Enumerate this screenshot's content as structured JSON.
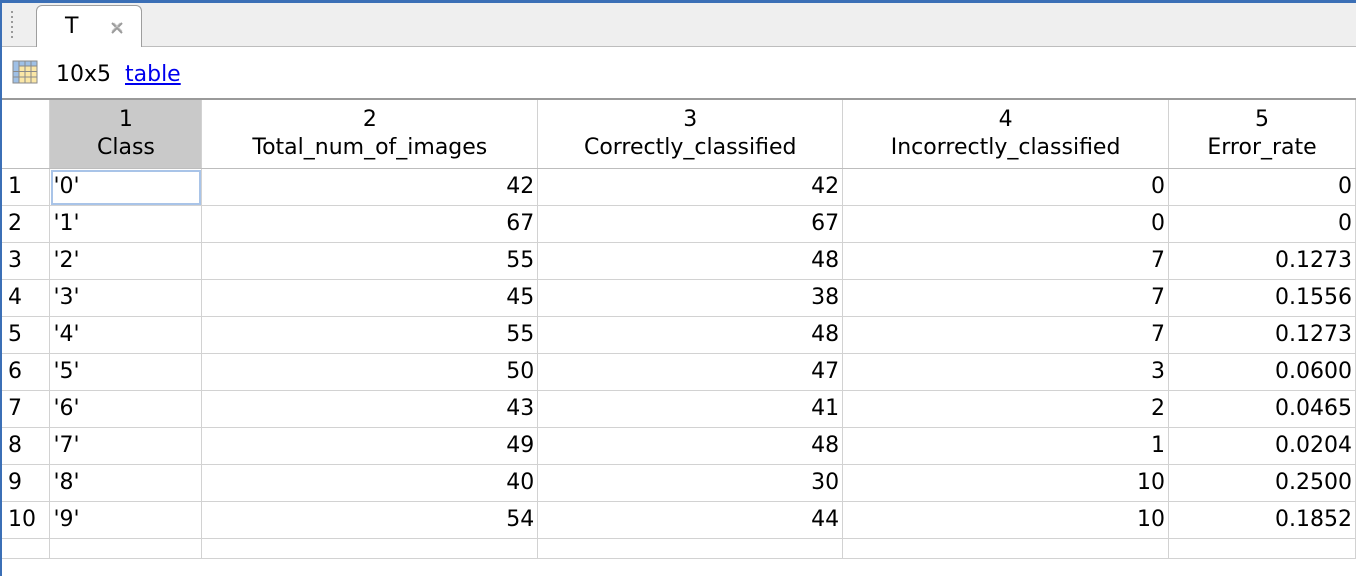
{
  "tab": {
    "label": "T"
  },
  "info": {
    "size": "10x5",
    "type_link": "table"
  },
  "columns": [
    {
      "number": "1",
      "name": "Class"
    },
    {
      "number": "2",
      "name": "Total_num_of_images"
    },
    {
      "number": "3",
      "name": "Correctly_classified"
    },
    {
      "number": "4",
      "name": "Incorrectly_classified"
    },
    {
      "number": "5",
      "name": "Error_rate"
    }
  ],
  "rows": [
    {
      "index": "1",
      "class": "'0'",
      "total": "42",
      "correct": "42",
      "incorrect": "0",
      "error_rate": "0"
    },
    {
      "index": "2",
      "class": "'1'",
      "total": "67",
      "correct": "67",
      "incorrect": "0",
      "error_rate": "0"
    },
    {
      "index": "3",
      "class": "'2'",
      "total": "55",
      "correct": "48",
      "incorrect": "7",
      "error_rate": "0.1273"
    },
    {
      "index": "4",
      "class": "'3'",
      "total": "45",
      "correct": "38",
      "incorrect": "7",
      "error_rate": "0.1556"
    },
    {
      "index": "5",
      "class": "'4'",
      "total": "55",
      "correct": "48",
      "incorrect": "7",
      "error_rate": "0.1273"
    },
    {
      "index": "6",
      "class": "'5'",
      "total": "50",
      "correct": "47",
      "incorrect": "3",
      "error_rate": "0.0600"
    },
    {
      "index": "7",
      "class": "'6'",
      "total": "43",
      "correct": "41",
      "incorrect": "2",
      "error_rate": "0.0465"
    },
    {
      "index": "8",
      "class": "'7'",
      "total": "49",
      "correct": "48",
      "incorrect": "1",
      "error_rate": "0.0204"
    },
    {
      "index": "9",
      "class": "'8'",
      "total": "40",
      "correct": "30",
      "incorrect": "10",
      "error_rate": "0.2500"
    },
    {
      "index": "10",
      "class": "'9'",
      "total": "54",
      "correct": "44",
      "incorrect": "10",
      "error_rate": "0.1852"
    }
  ],
  "colors": {
    "window_border": "#3b6fb6",
    "selected_header": "#c9c9c9",
    "active_cell_outline": "#a9c4e8",
    "link": "#0000ee"
  },
  "icons": {
    "tab_close": "close-icon",
    "table_type": "table-icon"
  }
}
